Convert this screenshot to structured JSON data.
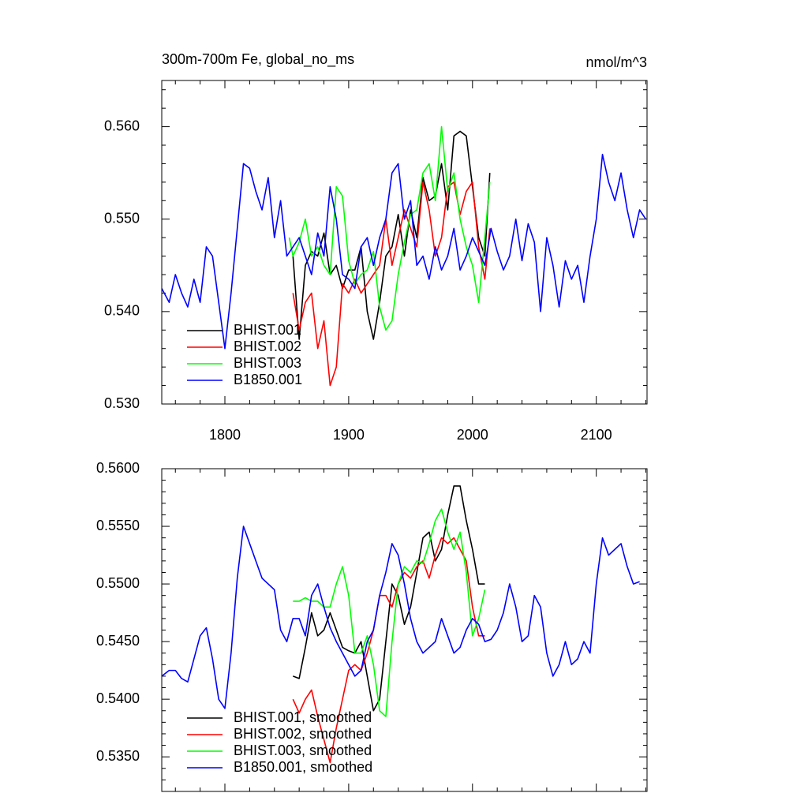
{
  "chart_data": [
    {
      "type": "line",
      "title": "300m-700m Fe, global_no_ms",
      "units_label": "nmol/m^3",
      "xlim": [
        1749,
        2141
      ],
      "xticks": [
        1800,
        1900,
        2000,
        2100
      ],
      "xtick_labels": true,
      "ylim": [
        0.53,
        0.565
      ],
      "yticks": [
        {
          "value": 0.53,
          "label": "0.530"
        },
        {
          "value": 0.54,
          "label": "0.540"
        },
        {
          "value": 0.55,
          "label": "0.550"
        },
        {
          "value": 0.56,
          "label": "0.560"
        }
      ],
      "legend": "lower left",
      "series": [
        {
          "name": "BHIST.001",
          "color": "#000000",
          "x": [
            1855,
            1860,
            1865,
            1870,
            1875,
            1880,
            1885,
            1890,
            1895,
            1900,
            1905,
            1910,
            1915,
            1920,
            1925,
            1930,
            1935,
            1940,
            1945,
            1950,
            1955,
            1960,
            1965,
            1970,
            1975,
            1980,
            1985,
            1990,
            1995,
            2000,
            2005,
            2010,
            2014
          ],
          "values": [
            0.546,
            0.537,
            0.545,
            0.5465,
            0.546,
            0.5485,
            0.544,
            0.545,
            0.5425,
            0.5445,
            0.5445,
            0.547,
            0.54,
            0.537,
            0.541,
            0.546,
            0.547,
            0.5505,
            0.546,
            0.551,
            0.548,
            0.5545,
            0.552,
            0.5525,
            0.556,
            0.551,
            0.559,
            0.5595,
            0.559,
            0.5535,
            0.548,
            0.546,
            0.555
          ]
        },
        {
          "name": "BHIST.002",
          "color": "#ff0000",
          "x": [
            1855,
            1860,
            1865,
            1870,
            1875,
            1880,
            1885,
            1890,
            1895,
            1900,
            1905,
            1910,
            1915,
            1920,
            1925,
            1930,
            1935,
            1940,
            1945,
            1950,
            1955,
            1960,
            1965,
            1970,
            1975,
            1980,
            1985,
            1990,
            1995,
            2000,
            2005,
            2010,
            2014
          ],
          "values": [
            0.542,
            0.538,
            0.541,
            0.542,
            0.536,
            0.539,
            0.532,
            0.534,
            0.543,
            0.542,
            0.5435,
            0.542,
            0.543,
            0.544,
            0.545,
            0.55,
            0.545,
            0.548,
            0.551,
            0.549,
            0.547,
            0.554,
            0.551,
            0.546,
            0.548,
            0.5535,
            0.554,
            0.5505,
            0.553,
            0.554,
            0.547,
            0.5435,
            0.549
          ]
        },
        {
          "name": "BHIST.003",
          "color": "#00ff00",
          "x": [
            1852,
            1855,
            1860,
            1865,
            1870,
            1875,
            1880,
            1885,
            1890,
            1895,
            1900,
            1905,
            1910,
            1915,
            1920,
            1925,
            1930,
            1935,
            1940,
            1945,
            1950,
            1955,
            1960,
            1965,
            1970,
            1975,
            1980,
            1985,
            1990,
            1995,
            2000,
            2005,
            2010,
            2014
          ],
          "values": [
            0.548,
            0.546,
            0.5475,
            0.55,
            0.546,
            0.547,
            0.545,
            0.544,
            0.5535,
            0.5525,
            0.5455,
            0.543,
            0.544,
            0.5445,
            0.5465,
            0.5405,
            0.538,
            0.539,
            0.544,
            0.5475,
            0.5505,
            0.551,
            0.555,
            0.556,
            0.552,
            0.56,
            0.553,
            0.555,
            0.55,
            0.547,
            0.545,
            0.541,
            0.548,
            0.554
          ]
        },
        {
          "name": "B1850.001",
          "color": "#0000ff",
          "x": [
            1749,
            1755,
            1760,
            1765,
            1770,
            1775,
            1780,
            1785,
            1790,
            1795,
            1800,
            1805,
            1810,
            1815,
            1820,
            1825,
            1830,
            1835,
            1840,
            1845,
            1850,
            1855,
            1860,
            1865,
            1870,
            1875,
            1880,
            1885,
            1890,
            1895,
            1900,
            1905,
            1910,
            1915,
            1920,
            1925,
            1930,
            1935,
            1940,
            1945,
            1950,
            1955,
            1960,
            1965,
            1970,
            1975,
            1980,
            1985,
            1990,
            1995,
            2000,
            2005,
            2010,
            2015,
            2020,
            2025,
            2030,
            2035,
            2040,
            2045,
            2050,
            2055,
            2060,
            2065,
            2070,
            2075,
            2080,
            2085,
            2090,
            2095,
            2100,
            2105,
            2110,
            2115,
            2120,
            2125,
            2130,
            2135,
            2140
          ],
          "values": [
            0.5425,
            0.541,
            0.544,
            0.542,
            0.5405,
            0.5435,
            0.541,
            0.547,
            0.546,
            0.541,
            0.536,
            0.542,
            0.549,
            0.556,
            0.5555,
            0.553,
            0.551,
            0.5545,
            0.548,
            0.552,
            0.546,
            0.547,
            0.548,
            0.546,
            0.544,
            0.5485,
            0.546,
            0.5535,
            0.55,
            0.544,
            0.5435,
            0.5425,
            0.547,
            0.548,
            0.545,
            0.548,
            0.55,
            0.555,
            0.556,
            0.55,
            0.552,
            0.545,
            0.546,
            0.5435,
            0.547,
            0.5445,
            0.546,
            0.549,
            0.5445,
            0.546,
            0.548,
            0.5465,
            0.545,
            0.549,
            0.5465,
            0.5445,
            0.546,
            0.55,
            0.5455,
            0.5495,
            0.5475,
            0.54,
            0.548,
            0.545,
            0.5405,
            0.5455,
            0.5435,
            0.545,
            0.541,
            0.546,
            0.55,
            0.557,
            0.554,
            0.552,
            0.555,
            0.551,
            0.548,
            0.551,
            0.55
          ]
        }
      ]
    },
    {
      "type": "line",
      "xlim": [
        1749,
        2141
      ],
      "xticks": [
        1800,
        1900,
        2000,
        2100
      ],
      "xtick_labels": false,
      "ylim": [
        0.532,
        0.56
      ],
      "yticks": [
        {
          "value": 0.535,
          "label": "0.5350"
        },
        {
          "value": 0.54,
          "label": "0.5400"
        },
        {
          "value": 0.545,
          "label": "0.5450"
        },
        {
          "value": 0.55,
          "label": "0.5500"
        },
        {
          "value": 0.555,
          "label": "0.5550"
        },
        {
          "value": 0.56,
          "label": "0.5600"
        }
      ],
      "legend": "lower left",
      "series": [
        {
          "name": "BHIST.001, smoothed",
          "color": "#000000",
          "x": [
            1855,
            1860,
            1865,
            1870,
            1875,
            1880,
            1885,
            1890,
            1895,
            1900,
            1905,
            1910,
            1915,
            1920,
            1925,
            1930,
            1935,
            1940,
            1945,
            1950,
            1955,
            1960,
            1965,
            1970,
            1975,
            1980,
            1985,
            1990,
            1995,
            2000,
            2005,
            2010
          ],
          "values": [
            0.542,
            0.5418,
            0.5445,
            0.5475,
            0.5455,
            0.546,
            0.5475,
            0.546,
            0.5445,
            0.5442,
            0.544,
            0.545,
            0.542,
            0.539,
            0.54,
            0.545,
            0.55,
            0.549,
            0.5465,
            0.548,
            0.551,
            0.554,
            0.5545,
            0.552,
            0.553,
            0.556,
            0.5585,
            0.5585,
            0.5555,
            0.553,
            0.55,
            0.55
          ]
        },
        {
          "name": "BHIST.002, smoothed",
          "color": "#ff0000",
          "x": [
            1855,
            1860,
            1865,
            1870,
            1875,
            1880,
            1885,
            1890,
            1895,
            1900,
            1905,
            1910,
            1915,
            1920,
            1925,
            1930,
            1935,
            1940,
            1945,
            1950,
            1955,
            1960,
            1965,
            1970,
            1975,
            1980,
            1985,
            1990,
            1995,
            2000,
            2005,
            2010
          ],
          "values": [
            0.54,
            0.5388,
            0.54,
            0.5408,
            0.5385,
            0.5365,
            0.5345,
            0.5375,
            0.54,
            0.5425,
            0.543,
            0.5425,
            0.544,
            0.546,
            0.549,
            0.549,
            0.548,
            0.55,
            0.551,
            0.5505,
            0.5515,
            0.552,
            0.5505,
            0.5525,
            0.554,
            0.5535,
            0.554,
            0.553,
            0.552,
            0.548,
            0.5455,
            0.5455
          ]
        },
        {
          "name": "BHIST.003, smoothed",
          "color": "#00ff00",
          "x": [
            1855,
            1860,
            1865,
            1870,
            1875,
            1880,
            1885,
            1890,
            1895,
            1900,
            1905,
            1910,
            1915,
            1920,
            1925,
            1930,
            1935,
            1940,
            1945,
            1950,
            1955,
            1960,
            1965,
            1970,
            1975,
            1980,
            1985,
            1990,
            1995,
            2000,
            2005,
            2010
          ],
          "values": [
            0.5485,
            0.5485,
            0.5488,
            0.5485,
            0.5485,
            0.548,
            0.548,
            0.55,
            0.5515,
            0.549,
            0.544,
            0.544,
            0.5455,
            0.543,
            0.539,
            0.5385,
            0.545,
            0.55,
            0.5515,
            0.551,
            0.552,
            0.5518,
            0.5535,
            0.5555,
            0.5565,
            0.5545,
            0.553,
            0.5545,
            0.551,
            0.5455,
            0.547,
            0.5495
          ]
        },
        {
          "name": "B1850.001, smoothed",
          "color": "#0000ff",
          "x": [
            1749,
            1755,
            1760,
            1765,
            1770,
            1775,
            1780,
            1785,
            1790,
            1795,
            1800,
            1805,
            1810,
            1815,
            1820,
            1825,
            1830,
            1835,
            1840,
            1845,
            1850,
            1855,
            1860,
            1865,
            1870,
            1875,
            1880,
            1885,
            1890,
            1895,
            1900,
            1905,
            1910,
            1915,
            1920,
            1925,
            1930,
            1935,
            1940,
            1945,
            1950,
            1955,
            1960,
            1965,
            1970,
            1975,
            1980,
            1985,
            1990,
            1995,
            2000,
            2005,
            2010,
            2015,
            2020,
            2025,
            2030,
            2035,
            2040,
            2045,
            2050,
            2055,
            2060,
            2065,
            2070,
            2075,
            2080,
            2085,
            2090,
            2095,
            2100,
            2105,
            2110,
            2115,
            2120,
            2125,
            2130,
            2135
          ],
          "values": [
            0.542,
            0.5425,
            0.5425,
            0.5418,
            0.5415,
            0.5435,
            0.5455,
            0.5462,
            0.5435,
            0.54,
            0.5392,
            0.544,
            0.5505,
            0.555,
            0.5535,
            0.552,
            0.5505,
            0.55,
            0.5495,
            0.546,
            0.545,
            0.547,
            0.547,
            0.5455,
            0.549,
            0.55,
            0.548,
            0.5462,
            0.545,
            0.544,
            0.543,
            0.542,
            0.5425,
            0.545,
            0.546,
            0.549,
            0.551,
            0.5535,
            0.5525,
            0.55,
            0.547,
            0.545,
            0.544,
            0.5445,
            0.545,
            0.547,
            0.5455,
            0.544,
            0.5445,
            0.546,
            0.547,
            0.5465,
            0.545,
            0.5452,
            0.546,
            0.5475,
            0.55,
            0.548,
            0.545,
            0.5455,
            0.549,
            0.548,
            0.544,
            0.542,
            0.543,
            0.545,
            0.543,
            0.5435,
            0.545,
            0.544,
            0.55,
            0.554,
            0.5525,
            0.553,
            0.5535,
            0.5515,
            0.55,
            0.5502
          ]
        }
      ]
    }
  ]
}
